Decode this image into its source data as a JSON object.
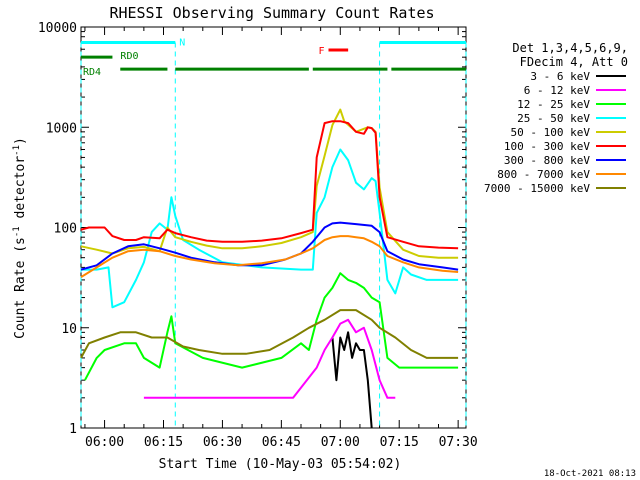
{
  "chart_data": {
    "type": "line",
    "title": "RHESSI Observing Summary Count Rates",
    "xlabel": "Start Time (10-May-03 05:54:02)",
    "ylabel": "Count Rate (s",
    "ylabel_sup1": "-1",
    "ylabel_mid": " detector",
    "ylabel_sup2": "-1",
    "ylabel_end": ")",
    "y_scale": "log",
    "ylim": [
      1,
      10000
    ],
    "xlim": [
      "05:54",
      "07:32"
    ],
    "x_ticks": [
      "06:00",
      "06:15",
      "06:30",
      "06:45",
      "07:00",
      "07:15",
      "07:30"
    ],
    "y_ticks": [
      "1",
      "10",
      "100",
      "1000",
      "10000"
    ],
    "legend_header": [
      "Det 1,3,4,5,6,9,",
      "FDecim 4, Att 0"
    ],
    "series": [
      {
        "name": "3 - 6 keV",
        "color": "#000000",
        "points": [
          [
            "06:58",
            8
          ],
          [
            "06:59",
            3
          ],
          [
            "07:00",
            8
          ],
          [
            "07:01",
            6
          ],
          [
            "07:02",
            9
          ],
          [
            "07:03",
            5
          ],
          [
            "07:04",
            7
          ],
          [
            "07:05",
            6
          ],
          [
            "07:06",
            6
          ],
          [
            "07:07",
            3
          ],
          [
            "07:08",
            1
          ]
        ]
      },
      {
        "name": "6 - 12 keV",
        "color": "#ff00ff",
        "points": [
          [
            "06:10",
            2
          ],
          [
            "06:20",
            2
          ],
          [
            "06:30",
            2
          ],
          [
            "06:40",
            2
          ],
          [
            "06:48",
            2
          ],
          [
            "06:54",
            4
          ],
          [
            "06:56",
            6
          ],
          [
            "06:58",
            8
          ],
          [
            "07:00",
            11
          ],
          [
            "07:02",
            12
          ],
          [
            "07:04",
            9
          ],
          [
            "07:06",
            10
          ],
          [
            "07:08",
            6
          ],
          [
            "07:10",
            3
          ],
          [
            "07:12",
            2
          ],
          [
            "07:14",
            2
          ]
        ]
      },
      {
        "name": "12 - 25 keV",
        "color": "#00ff00",
        "points": [
          [
            "05:55",
            3
          ],
          [
            "05:58",
            5
          ],
          [
            "06:00",
            6
          ],
          [
            "06:05",
            7
          ],
          [
            "06:08",
            7
          ],
          [
            "06:10",
            5
          ],
          [
            "06:14",
            4
          ],
          [
            "06:16",
            9
          ],
          [
            "06:17",
            13
          ],
          [
            "06:18",
            7
          ],
          [
            "06:25",
            5
          ],
          [
            "06:35",
            4
          ],
          [
            "06:45",
            5
          ],
          [
            "06:50",
            7
          ],
          [
            "06:52",
            6
          ],
          [
            "06:54",
            12
          ],
          [
            "06:56",
            20
          ],
          [
            "06:58",
            25
          ],
          [
            "07:00",
            35
          ],
          [
            "07:02",
            30
          ],
          [
            "07:04",
            28
          ],
          [
            "07:06",
            25
          ],
          [
            "07:08",
            20
          ],
          [
            "07:10",
            18
          ],
          [
            "07:12",
            5
          ],
          [
            "07:15",
            4
          ],
          [
            "07:20",
            4
          ],
          [
            "07:25",
            4
          ],
          [
            "07:30",
            4
          ]
        ]
      },
      {
        "name": "25 - 50 keV",
        "color": "#00ffff",
        "points": [
          [
            "05:54",
            38
          ],
          [
            "05:58",
            38
          ],
          [
            "06:01",
            40
          ],
          [
            "06:02",
            16
          ],
          [
            "06:05",
            18
          ],
          [
            "06:08",
            30
          ],
          [
            "06:10",
            45
          ],
          [
            "06:12",
            90
          ],
          [
            "06:14",
            110
          ],
          [
            "06:16",
            95
          ],
          [
            "06:17",
            200
          ],
          [
            "06:18",
            130
          ],
          [
            "06:20",
            75
          ],
          [
            "06:24",
            60
          ],
          [
            "06:30",
            45
          ],
          [
            "06:40",
            40
          ],
          [
            "06:50",
            38
          ],
          [
            "06:53",
            38
          ],
          [
            "06:54",
            140
          ],
          [
            "06:56",
            200
          ],
          [
            "06:58",
            400
          ],
          [
            "07:00",
            600
          ],
          [
            "07:02",
            470
          ],
          [
            "07:04",
            280
          ],
          [
            "07:06",
            240
          ],
          [
            "07:08",
            310
          ],
          [
            "07:09",
            290
          ],
          [
            "07:10",
            140
          ],
          [
            "07:12",
            30
          ],
          [
            "07:14",
            22
          ],
          [
            "07:16",
            40
          ],
          [
            "07:18",
            34
          ],
          [
            "07:22",
            30
          ],
          [
            "07:26",
            30
          ],
          [
            "07:30",
            30
          ]
        ]
      },
      {
        "name": "50 - 100 keV",
        "color": "#cccc00",
        "points": [
          [
            "05:54",
            65
          ],
          [
            "05:58",
            60
          ],
          [
            "06:02",
            55
          ],
          [
            "06:06",
            62
          ],
          [
            "06:10",
            64
          ],
          [
            "06:14",
            58
          ],
          [
            "06:16",
            100
          ],
          [
            "06:18",
            80
          ],
          [
            "06:22",
            72
          ],
          [
            "06:26",
            66
          ],
          [
            "06:30",
            62
          ],
          [
            "06:35",
            62
          ],
          [
            "06:40",
            65
          ],
          [
            "06:45",
            70
          ],
          [
            "06:50",
            80
          ],
          [
            "06:53",
            90
          ],
          [
            "06:54",
            260
          ],
          [
            "06:56",
            520
          ],
          [
            "06:58",
            1050
          ],
          [
            "07:00",
            1500
          ],
          [
            "07:01",
            1150
          ],
          [
            "07:04",
            900
          ],
          [
            "07:07",
            1000
          ],
          [
            "07:08",
            980
          ],
          [
            "07:09",
            900
          ],
          [
            "07:10",
            250
          ],
          [
            "07:12",
            90
          ],
          [
            "07:16",
            60
          ],
          [
            "07:20",
            52
          ],
          [
            "07:25",
            50
          ],
          [
            "07:30",
            50
          ]
        ]
      },
      {
        "name": "100 - 300 keV",
        "color": "#ff0000",
        "points": [
          [
            "05:54",
            95
          ],
          [
            "05:56",
            100
          ],
          [
            "06:00",
            100
          ],
          [
            "06:02",
            82
          ],
          [
            "06:05",
            75
          ],
          [
            "06:08",
            75
          ],
          [
            "06:10",
            80
          ],
          [
            "06:14",
            78
          ],
          [
            "06:16",
            95
          ],
          [
            "06:18",
            88
          ],
          [
            "06:22",
            80
          ],
          [
            "06:26",
            74
          ],
          [
            "06:30",
            72
          ],
          [
            "06:35",
            72
          ],
          [
            "06:40",
            74
          ],
          [
            "06:45",
            78
          ],
          [
            "06:50",
            88
          ],
          [
            "06:53",
            95
          ],
          [
            "06:54",
            500
          ],
          [
            "06:56",
            1100
          ],
          [
            "06:58",
            1150
          ],
          [
            "07:00",
            1150
          ],
          [
            "07:02",
            1100
          ],
          [
            "07:04",
            900
          ],
          [
            "07:06",
            860
          ],
          [
            "07:07",
            1000
          ],
          [
            "07:08",
            980
          ],
          [
            "07:09",
            880
          ],
          [
            "07:10",
            200
          ],
          [
            "07:12",
            80
          ],
          [
            "07:16",
            72
          ],
          [
            "07:20",
            65
          ],
          [
            "07:25",
            63
          ],
          [
            "07:30",
            62
          ]
        ]
      },
      {
        "name": "300 - 800 keV",
        "color": "#0000ff",
        "points": [
          [
            "05:54",
            38
          ],
          [
            "05:58",
            42
          ],
          [
            "06:02",
            55
          ],
          [
            "06:06",
            65
          ],
          [
            "06:10",
            68
          ],
          [
            "06:14",
            62
          ],
          [
            "06:18",
            56
          ],
          [
            "06:22",
            50
          ],
          [
            "06:28",
            45
          ],
          [
            "06:34",
            42
          ],
          [
            "06:40",
            42
          ],
          [
            "06:46",
            48
          ],
          [
            "06:50",
            55
          ],
          [
            "06:53",
            72
          ],
          [
            "06:56",
            100
          ],
          [
            "06:58",
            110
          ],
          [
            "07:00",
            112
          ],
          [
            "07:04",
            108
          ],
          [
            "07:08",
            104
          ],
          [
            "07:10",
            90
          ],
          [
            "07:12",
            58
          ],
          [
            "07:16",
            48
          ],
          [
            "07:20",
            43
          ],
          [
            "07:26",
            40
          ],
          [
            "07:30",
            38
          ]
        ]
      },
      {
        "name": "800 - 7000 keV",
        "color": "#ff8800",
        "points": [
          [
            "05:54",
            32
          ],
          [
            "05:58",
            40
          ],
          [
            "06:02",
            50
          ],
          [
            "06:06",
            58
          ],
          [
            "06:10",
            60
          ],
          [
            "06:14",
            58
          ],
          [
            "06:18",
            52
          ],
          [
            "06:22",
            48
          ],
          [
            "06:28",
            44
          ],
          [
            "06:34",
            42
          ],
          [
            "06:40",
            44
          ],
          [
            "06:46",
            48
          ],
          [
            "06:50",
            55
          ],
          [
            "06:53",
            62
          ],
          [
            "06:56",
            75
          ],
          [
            "06:58",
            80
          ],
          [
            "07:00",
            82
          ],
          [
            "07:02",
            82
          ],
          [
            "07:04",
            80
          ],
          [
            "07:06",
            78
          ],
          [
            "07:08",
            72
          ],
          [
            "07:10",
            65
          ],
          [
            "07:12",
            52
          ],
          [
            "07:16",
            45
          ],
          [
            "07:20",
            40
          ],
          [
            "07:26",
            37
          ],
          [
            "07:30",
            36
          ]
        ]
      },
      {
        "name": "7000 - 15000 keV",
        "color": "#808000",
        "points": [
          [
            "05:54",
            5
          ],
          [
            "05:56",
            7
          ],
          [
            "06:00",
            8
          ],
          [
            "06:04",
            9
          ],
          [
            "06:08",
            9
          ],
          [
            "06:12",
            8
          ],
          [
            "06:16",
            8
          ],
          [
            "06:20",
            6.5
          ],
          [
            "06:24",
            6
          ],
          [
            "06:30",
            5.5
          ],
          [
            "06:36",
            5.5
          ],
          [
            "06:42",
            6
          ],
          [
            "06:48",
            8
          ],
          [
            "06:52",
            10
          ],
          [
            "06:56",
            12
          ],
          [
            "07:00",
            15
          ],
          [
            "07:04",
            15
          ],
          [
            "07:08",
            12
          ],
          [
            "07:10",
            10
          ],
          [
            "07:14",
            8
          ],
          [
            "07:18",
            6
          ],
          [
            "07:22",
            5
          ],
          [
            "07:26",
            5
          ],
          [
            "07:30",
            5
          ]
        ]
      }
    ],
    "annotations": [
      {
        "label": "N",
        "color": "#00ffff",
        "segments": [
          [
            "05:54",
            "06:18"
          ],
          [
            "07:10",
            "07:32"
          ]
        ]
      },
      {
        "label": "RD0",
        "color": "#008000",
        "segments": [
          [
            "05:54",
            "06:02"
          ]
        ]
      },
      {
        "label": "RD4",
        "color": "#008000",
        "segments": [
          [
            "06:04",
            "06:16"
          ],
          [
            "06:18",
            "06:52"
          ],
          [
            "06:53",
            "07:12"
          ],
          [
            "07:13",
            "07:32"
          ]
        ]
      },
      {
        "label": "F",
        "color": "#ff0000",
        "segments": [
          [
            "06:57",
            "07:02"
          ]
        ]
      }
    ],
    "grid": false
  },
  "footer": {
    "timestamp": "18-Oct-2021 08:13"
  }
}
